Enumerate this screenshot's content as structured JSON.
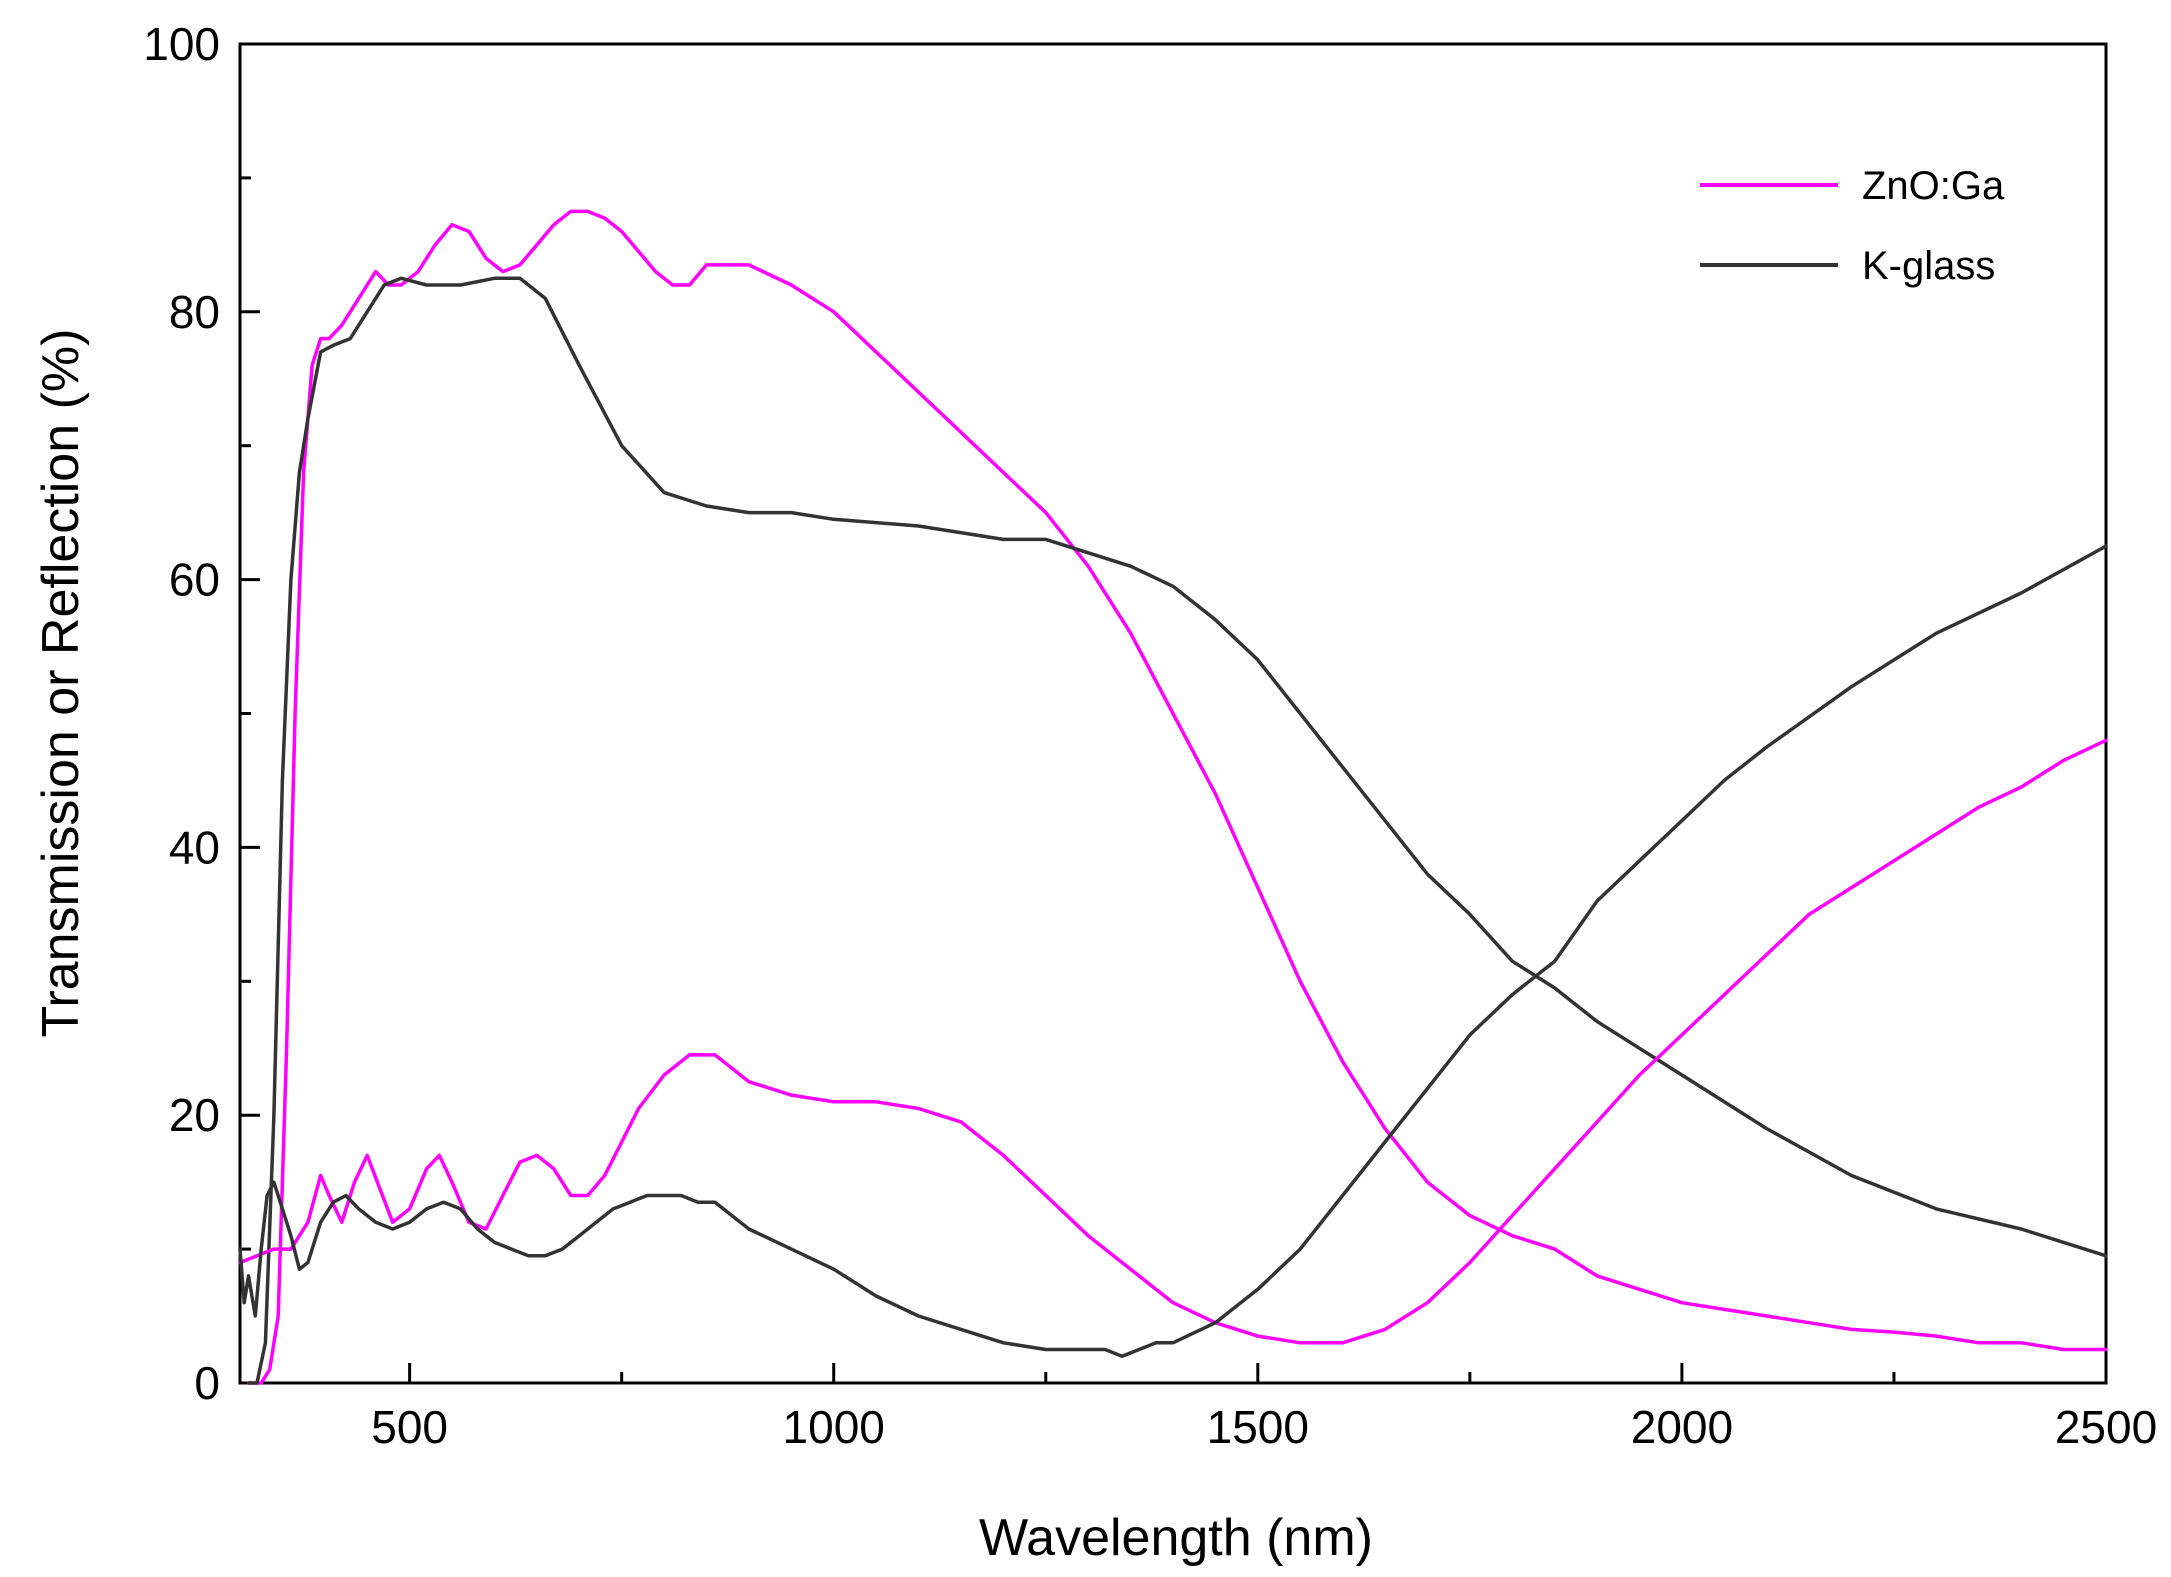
{
  "chart_data": {
    "type": "line",
    "title": "",
    "xlabel": "Wavelength (nm)",
    "ylabel": "Transmission or Reflection (%)",
    "xlim": [
      300,
      2500
    ],
    "ylim": [
      0,
      100
    ],
    "xticks": [
      500,
      1000,
      1500,
      2000,
      2500
    ],
    "yticks": [
      0,
      20,
      40,
      60,
      80,
      100
    ],
    "grid": false,
    "legend_position": "top-right",
    "legend": [
      {
        "label": "ZnO:Ga",
        "color": "#ff00ff"
      },
      {
        "label": "K-glass",
        "color": "#333333"
      }
    ],
    "series": [
      {
        "name": "ZnO:Ga",
        "role": "transmission",
        "color": "#ff00ff",
        "x": [
          310,
          325,
          335,
          345,
          355,
          365,
          375,
          385,
          395,
          405,
          420,
          440,
          460,
          475,
          490,
          510,
          530,
          550,
          570,
          590,
          610,
          630,
          650,
          670,
          690,
          710,
          730,
          750,
          770,
          790,
          810,
          830,
          850,
          870,
          900,
          950,
          1000,
          1050,
          1100,
          1150,
          1200,
          1250,
          1300,
          1350,
          1400,
          1450,
          1500,
          1550,
          1600,
          1650,
          1700,
          1750,
          1800,
          1850,
          1900,
          1950,
          2000,
          2050,
          2100,
          2150,
          2200,
          2250,
          2300,
          2350,
          2400,
          2450,
          2500
        ],
        "y": [
          0,
          0,
          1,
          5,
          25,
          50,
          68,
          76,
          78,
          78,
          79,
          81,
          83,
          82,
          82,
          83,
          85,
          86.5,
          86,
          84,
          83,
          83.5,
          85,
          86.5,
          87.5,
          87.5,
          87,
          86,
          84.5,
          83,
          82,
          82,
          83.5,
          83.5,
          83.5,
          82,
          80,
          77,
          74,
          71,
          68,
          65,
          61,
          56,
          50,
          44,
          37,
          30,
          24,
          19,
          15,
          12.5,
          11,
          10,
          8,
          7,
          6,
          5.5,
          5,
          4.5,
          4,
          3.8,
          3.5,
          3,
          3,
          2.5,
          2.5
        ]
      },
      {
        "name": "K-glass",
        "role": "transmission",
        "color": "#333333",
        "x": [
          310,
          320,
          330,
          340,
          350,
          360,
          370,
          380,
          395,
          410,
          430,
          450,
          470,
          490,
          520,
          560,
          600,
          630,
          660,
          700,
          750,
          800,
          850,
          900,
          950,
          1000,
          1100,
          1200,
          1250,
          1300,
          1350,
          1400,
          1450,
          1500,
          1550,
          1600,
          1650,
          1700,
          1750,
          1800,
          1850,
          1900,
          1950,
          2000,
          2100,
          2200,
          2300,
          2400,
          2500
        ],
        "y": [
          0,
          0,
          3,
          20,
          45,
          60,
          68,
          72,
          77,
          77.5,
          78,
          80,
          82,
          82.5,
          82,
          82,
          82.5,
          82.5,
          81,
          76,
          70,
          66.5,
          65.5,
          65,
          65,
          64.5,
          64,
          63,
          63,
          62,
          61,
          59.5,
          57,
          54,
          50,
          46,
          42,
          38,
          35,
          31.5,
          29.5,
          27,
          25,
          23,
          19,
          15.5,
          13,
          11.5,
          9.5
        ]
      },
      {
        "name": "ZnO:Ga",
        "role": "reflection",
        "color": "#ff00ff",
        "x": [
          300,
          320,
          340,
          360,
          380,
          395,
          405,
          420,
          435,
          450,
          465,
          480,
          500,
          520,
          535,
          550,
          570,
          590,
          610,
          630,
          650,
          670,
          690,
          710,
          730,
          750,
          770,
          800,
          830,
          860,
          880,
          900,
          950,
          1000,
          1050,
          1100,
          1150,
          1200,
          1250,
          1300,
          1350,
          1400,
          1450,
          1500,
          1550,
          1600,
          1650,
          1700,
          1750,
          1800,
          1850,
          1900,
          1950,
          2000,
          2050,
          2100,
          2150,
          2200,
          2250,
          2300,
          2350,
          2400,
          2450,
          2500
        ],
        "y": [
          9,
          9.5,
          10,
          10,
          12,
          15.5,
          14,
          12,
          15,
          17,
          14.5,
          12,
          13,
          16,
          17,
          15,
          12,
          11.5,
          14,
          16.5,
          17,
          16,
          14,
          14,
          15.5,
          18,
          20.5,
          23,
          24.5,
          24.5,
          23.5,
          22.5,
          21.5,
          21,
          21,
          20.5,
          19.5,
          17,
          14,
          11,
          8.5,
          6,
          4.5,
          3.5,
          3,
          3,
          4,
          6,
          9,
          12.5,
          16,
          19.5,
          23,
          26,
          29,
          32,
          35,
          37,
          39,
          41,
          43,
          44.5,
          46.5,
          48
        ]
      },
      {
        "name": "K-glass",
        "role": "reflection",
        "color": "#333333",
        "x": [
          300,
          305,
          310,
          318,
          325,
          332,
          340,
          350,
          360,
          370,
          380,
          395,
          410,
          425,
          440,
          460,
          480,
          500,
          520,
          540,
          560,
          580,
          600,
          620,
          640,
          660,
          680,
          700,
          720,
          740,
          760,
          780,
          800,
          820,
          840,
          860,
          880,
          900,
          950,
          1000,
          1050,
          1100,
          1150,
          1200,
          1250,
          1300,
          1320,
          1340,
          1360,
          1380,
          1400,
          1450,
          1500,
          1550,
          1600,
          1650,
          1700,
          1750,
          1800,
          1850,
          1900,
          1950,
          2000,
          2050,
          2100,
          2200,
          2300,
          2400,
          2500
        ],
        "y": [
          10,
          6,
          8,
          5,
          10,
          14,
          15,
          13,
          11,
          8.5,
          9,
          12,
          13.5,
          14,
          13,
          12,
          11.5,
          12,
          13,
          13.5,
          13,
          11.5,
          10.5,
          10,
          9.5,
          9.5,
          10,
          11,
          12,
          13,
          13.5,
          14,
          14,
          14,
          13.5,
          13.5,
          12.5,
          11.5,
          10,
          8.5,
          6.5,
          5,
          4,
          3,
          2.5,
          2.5,
          2.5,
          2,
          2.5,
          3,
          3,
          4.5,
          7,
          10,
          14,
          18,
          22,
          26,
          29,
          31.5,
          36,
          39,
          42,
          45,
          47.5,
          52,
          56,
          59,
          62.5
        ]
      }
    ]
  }
}
